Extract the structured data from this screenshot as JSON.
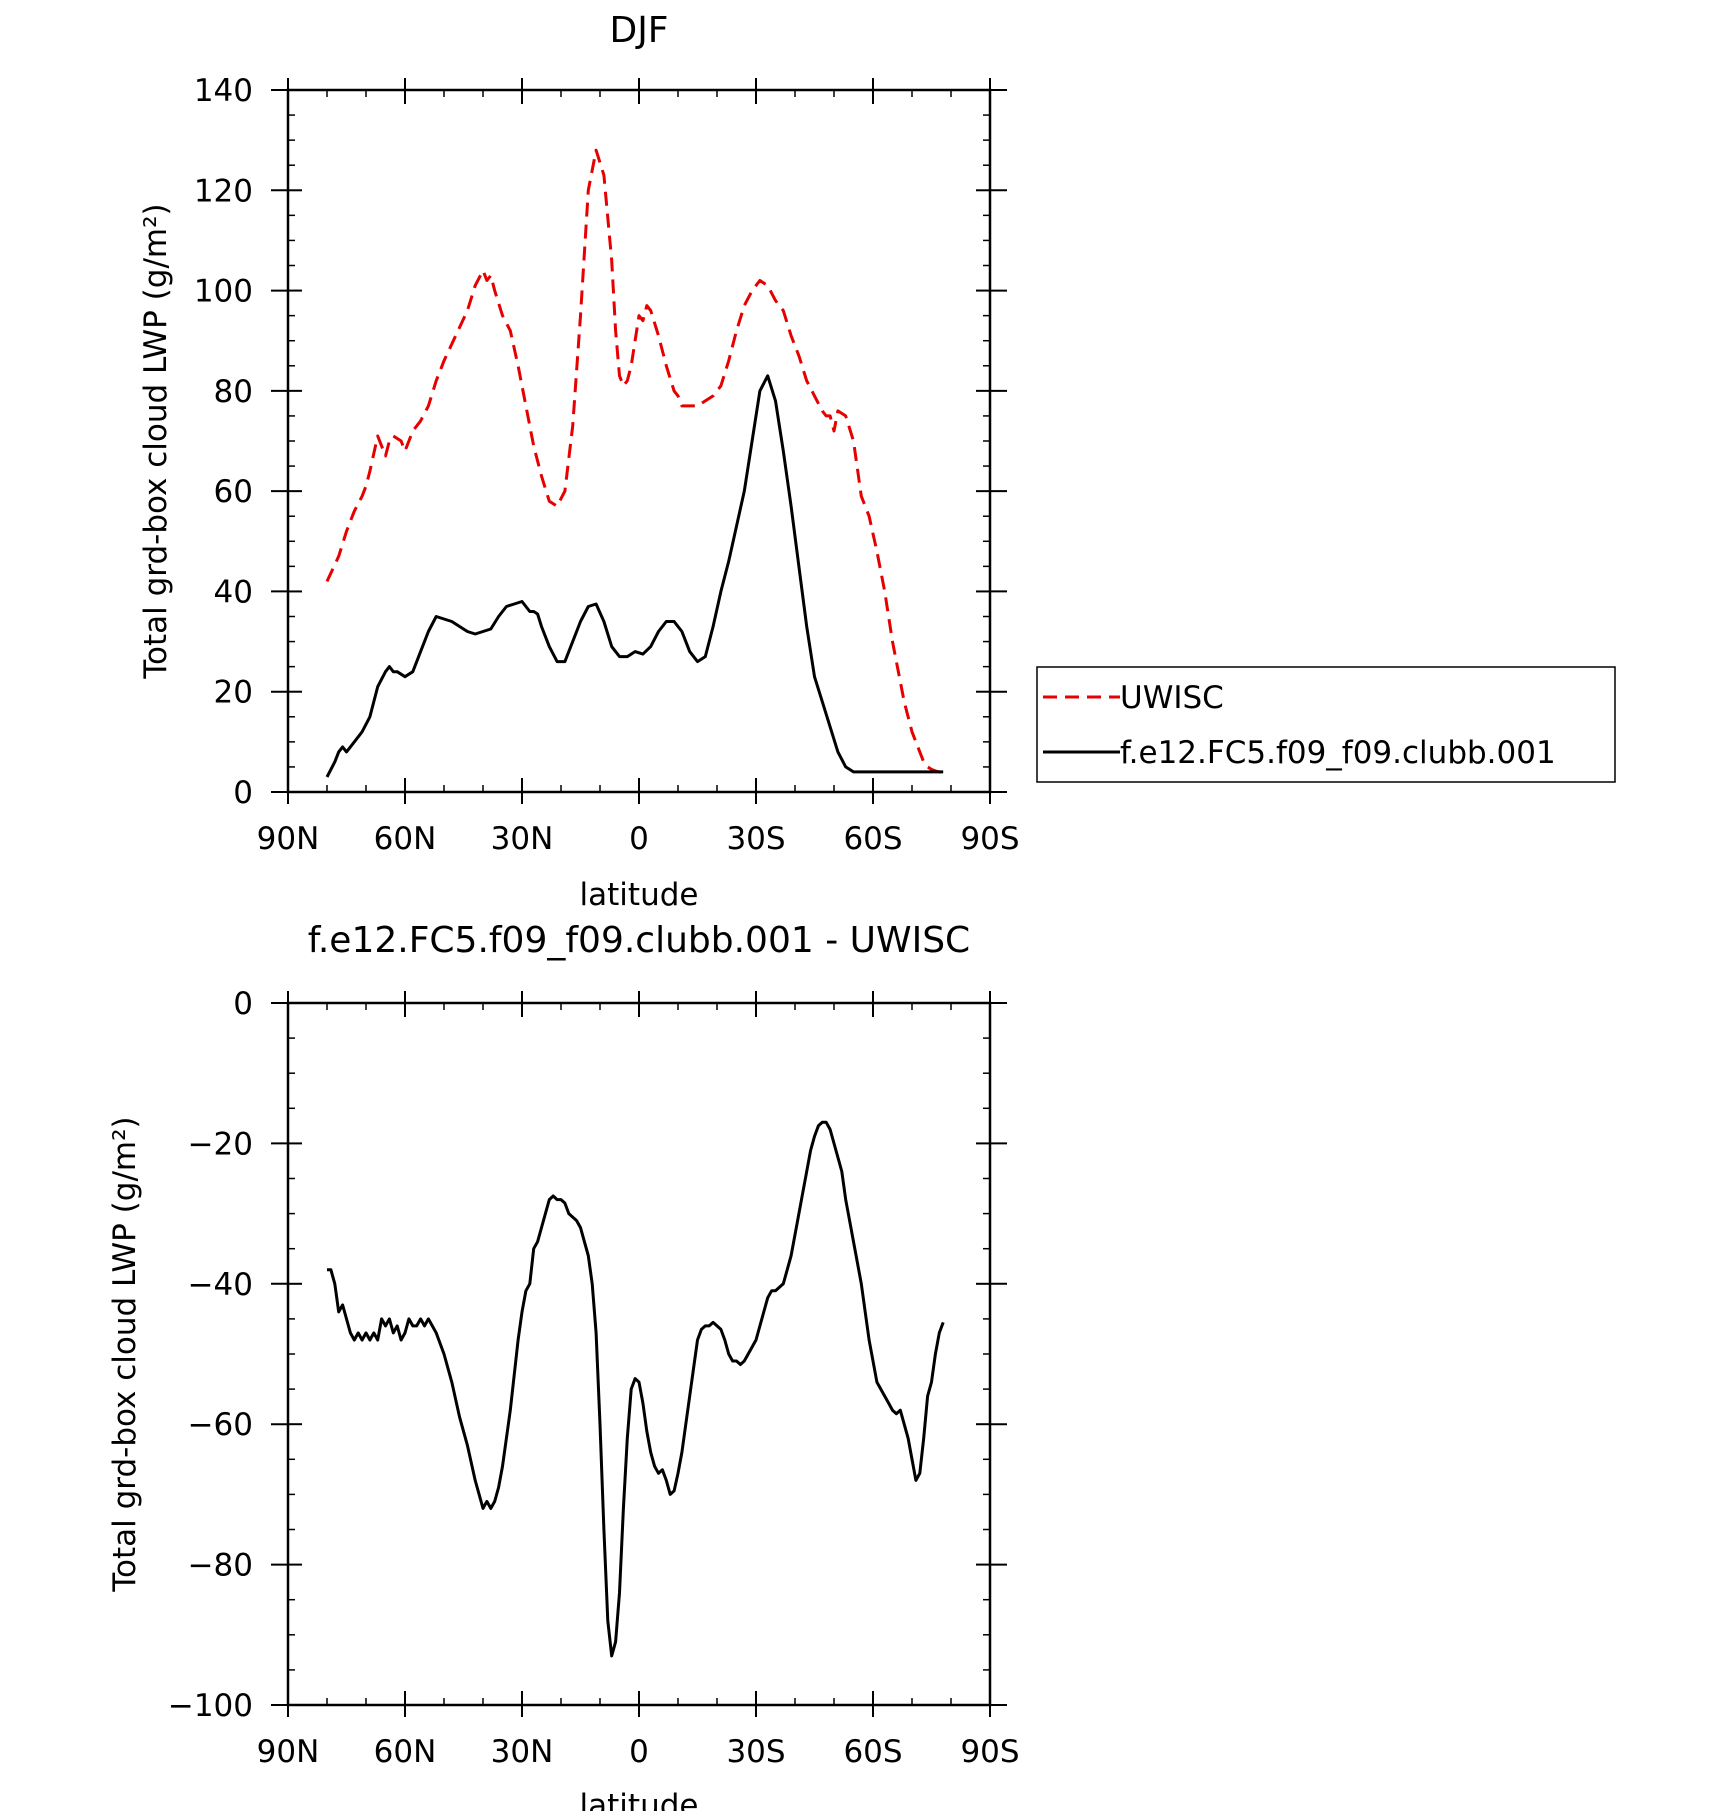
{
  "chart_data": [
    {
      "type": "line",
      "title": "DJF",
      "xlabel": "latitude",
      "ylabel": "Total grd-box cloud LWP (g/m²)",
      "xlim": [
        -90,
        90
      ],
      "ylim": [
        0,
        140
      ],
      "xtick_values": [
        -90,
        -60,
        -30,
        0,
        30,
        60,
        90
      ],
      "xtick_labels": [
        "90N",
        "60N",
        "30N",
        "0",
        "30S",
        "60S",
        "90S"
      ],
      "ytick_values": [
        0,
        20,
        40,
        60,
        80,
        100,
        120,
        140
      ],
      "ytick_labels": [
        "0",
        "20",
        "40",
        "60",
        "80",
        "100",
        "120",
        "140"
      ],
      "legend": "right",
      "series": [
        {
          "name": "UWISC",
          "color": "#e60000",
          "dash": "dashed",
          "x": [
            -80,
            -77,
            -75,
            -73,
            -71,
            -70,
            -69,
            -67,
            -65,
            -64,
            -63,
            -61,
            -60,
            -59,
            -58,
            -56,
            -54,
            -52,
            -50,
            -47,
            -44,
            -42,
            -40,
            -39,
            -38,
            -37,
            -35,
            -33,
            -31,
            -29,
            -27,
            -25,
            -23,
            -21,
            -19,
            -17,
            -15,
            -13,
            -11,
            -9,
            -7,
            -6,
            -5,
            -4,
            -3,
            -2,
            -1,
            0,
            1,
            2,
            3,
            5,
            7,
            9,
            10,
            11,
            13,
            15,
            17,
            19,
            21,
            23,
            25,
            27,
            29,
            31,
            33,
            35,
            37,
            39,
            41,
            43,
            45,
            47,
            48,
            49,
            50,
            51,
            53,
            55,
            57,
            59,
            61,
            63,
            65,
            67,
            68,
            69,
            70,
            71,
            72,
            73,
            74,
            75,
            76,
            77,
            78
          ],
          "y": [
            42,
            47,
            52,
            56,
            59,
            61,
            64,
            71,
            67,
            70,
            71,
            70,
            68,
            70,
            72,
            74,
            77,
            82,
            86,
            91,
            96,
            101,
            104,
            102,
            103,
            100,
            95,
            92,
            85,
            77,
            69,
            63,
            58,
            57,
            60,
            73,
            95,
            120,
            128,
            123,
            106,
            92,
            83,
            81,
            82,
            85,
            90,
            95,
            94,
            97,
            96,
            91,
            85,
            80,
            79,
            77,
            77,
            77,
            78,
            79,
            81,
            86,
            92,
            97,
            100,
            102,
            101,
            98,
            96,
            91,
            87,
            82,
            79,
            76,
            75,
            75,
            72,
            76,
            75,
            70,
            59,
            55,
            48,
            40,
            30,
            22,
            18,
            15,
            12,
            10,
            8,
            6,
            5,
            4.5,
            4.2,
            4.0,
            3.8
          ],
          "x_end": 78
        },
        {
          "name": "f.e12.FC5.f09_f09.clubb.001",
          "color": "#000000",
          "dash": "solid",
          "x": [
            -80,
            -78,
            -77,
            -76,
            -75,
            -73,
            -71,
            -69,
            -67,
            -65,
            -64,
            -63,
            -62,
            -60,
            -58,
            -56,
            -54,
            -52,
            -50,
            -48,
            -46,
            -44,
            -42,
            -40,
            -38,
            -36,
            -34,
            -32,
            -30,
            -29,
            -28,
            -27,
            -26,
            -25,
            -23,
            -21,
            -19,
            -17,
            -15,
            -13,
            -11,
            -9,
            -7,
            -5,
            -3,
            -1,
            1,
            3,
            5,
            7,
            9,
            11,
            13,
            15,
            17,
            19,
            21,
            23,
            25,
            27,
            29,
            31,
            33,
            35,
            37,
            39,
            41,
            43,
            45,
            47,
            49,
            51,
            53,
            55,
            57,
            59,
            61,
            63,
            65,
            67,
            69,
            71,
            73,
            75,
            77,
            78
          ],
          "y": [
            3,
            6,
            8,
            9,
            8,
            10,
            12,
            15,
            21,
            24,
            25,
            24,
            24,
            23,
            24,
            28,
            32,
            35,
            34.5,
            34,
            33,
            32,
            31.5,
            32,
            32.5,
            35,
            37,
            37.5,
            38,
            37,
            36,
            36,
            35.5,
            33,
            29,
            26,
            26,
            30,
            34,
            37,
            37.5,
            34,
            29,
            27,
            27,
            28,
            27.5,
            29,
            32,
            34,
            34,
            32,
            28,
            26,
            27,
            33,
            40,
            46,
            53,
            60,
            70,
            80,
            83,
            78,
            68,
            57,
            45,
            33,
            23,
            18,
            13,
            8,
            5,
            4,
            4,
            4,
            4,
            4,
            4,
            4,
            4,
            4,
            4,
            4,
            4,
            4
          ]
        }
      ]
    },
    {
      "type": "line",
      "title": "f.e12.FC5.f09_f09.clubb.001 - UWISC",
      "xlabel": "latitude",
      "ylabel": "Total grd-box cloud LWP (g/m²)",
      "xlim": [
        -90,
        90
      ],
      "ylim": [
        -100,
        0
      ],
      "xtick_values": [
        -90,
        -60,
        -30,
        0,
        30,
        60,
        90
      ],
      "xtick_labels": [
        "90N",
        "60N",
        "30N",
        "0",
        "30S",
        "60S",
        "90S"
      ],
      "ytick_values": [
        -100,
        -80,
        -60,
        -40,
        -20,
        0
      ],
      "ytick_labels": [
        "−100",
        "−80",
        "−60",
        "−40",
        "−20",
        "0"
      ],
      "series": [
        {
          "name": "",
          "color": "#000000",
          "dash": "solid",
          "x": [
            -80,
            -79,
            -78,
            -77,
            -76,
            -75,
            -74,
            -73,
            -72,
            -71,
            -70,
            -69,
            -68,
            -67,
            -66,
            -65,
            -64,
            -63,
            -62,
            -61,
            -60,
            -59,
            -58,
            -57,
            -56,
            -55,
            -54,
            -53,
            -52,
            -50,
            -48,
            -46,
            -44,
            -42,
            -40,
            -39,
            -38,
            -37,
            -36,
            -35,
            -33,
            -31,
            -30,
            -29,
            -28,
            -27,
            -26,
            -25,
            -24,
            -23,
            -22,
            -21,
            -20,
            -19,
            -18,
            -17,
            -16,
            -15,
            -14,
            -13,
            -12,
            -11,
            -10,
            -9,
            -8,
            -7,
            -6,
            -5,
            -4,
            -3,
            -2,
            -1,
            0,
            1,
            2,
            3,
            4,
            5,
            6,
            7,
            8,
            9,
            10,
            11,
            12,
            13,
            14,
            15,
            16,
            17,
            18,
            19,
            20,
            21,
            22,
            23,
            24,
            25,
            26,
            27,
            28,
            29,
            30,
            31,
            32,
            33,
            34,
            35,
            36,
            37,
            38,
            39,
            40,
            41,
            42,
            43,
            44,
            45,
            46,
            47,
            48,
            49,
            50,
            51,
            52,
            53,
            54,
            55,
            56,
            57,
            58,
            59,
            60,
            61,
            62,
            63,
            64,
            65,
            66,
            67,
            68,
            69,
            70,
            71,
            72,
            73,
            74,
            75,
            76,
            77,
            78
          ],
          "y": [
            -38,
            -38,
            -40,
            -44,
            -43,
            -45,
            -47,
            -48,
            -47,
            -48,
            -47,
            -48,
            -47,
            -48,
            -45,
            -46,
            -45,
            -47,
            -46,
            -48,
            -47,
            -45,
            -46,
            -46,
            -45,
            -46,
            -45,
            -46,
            -47,
            -50,
            -54,
            -59,
            -63,
            -68,
            -72,
            -71,
            -72,
            -71,
            -69,
            -66,
            -58,
            -48,
            -44,
            -41,
            -40,
            -35,
            -34,
            -32,
            -30,
            -28,
            -27.5,
            -28,
            -28,
            -28.5,
            -30,
            -30.5,
            -31,
            -32,
            -34,
            -36,
            -40,
            -47,
            -60,
            -75,
            -88,
            -93,
            -91,
            -84,
            -72,
            -62,
            -55,
            -53.5,
            -54,
            -57,
            -61,
            -64,
            -66,
            -67,
            -66.5,
            -68,
            -70,
            -69.5,
            -67,
            -64,
            -60,
            -56,
            -52,
            -48,
            -46.5,
            -46,
            -46,
            -45.5,
            -46,
            -46.5,
            -48,
            -50,
            -51,
            -51,
            -51.5,
            -51,
            -50,
            -49,
            -48,
            -46,
            -44,
            -42,
            -41,
            -41,
            -40.5,
            -40,
            -38,
            -36,
            -33,
            -30,
            -27,
            -24,
            -21,
            -19,
            -17.5,
            -17,
            -17,
            -18,
            -20,
            -22,
            -24,
            -28,
            -31,
            -34,
            -37,
            -40,
            -44,
            -48,
            -51,
            -54,
            -55,
            -56,
            -57,
            -58,
            -58.5,
            -58,
            -60,
            -62,
            -65,
            -68,
            -67,
            -62,
            -56,
            -54,
            -50,
            -47,
            -45.5
          ]
        }
      ]
    }
  ]
}
